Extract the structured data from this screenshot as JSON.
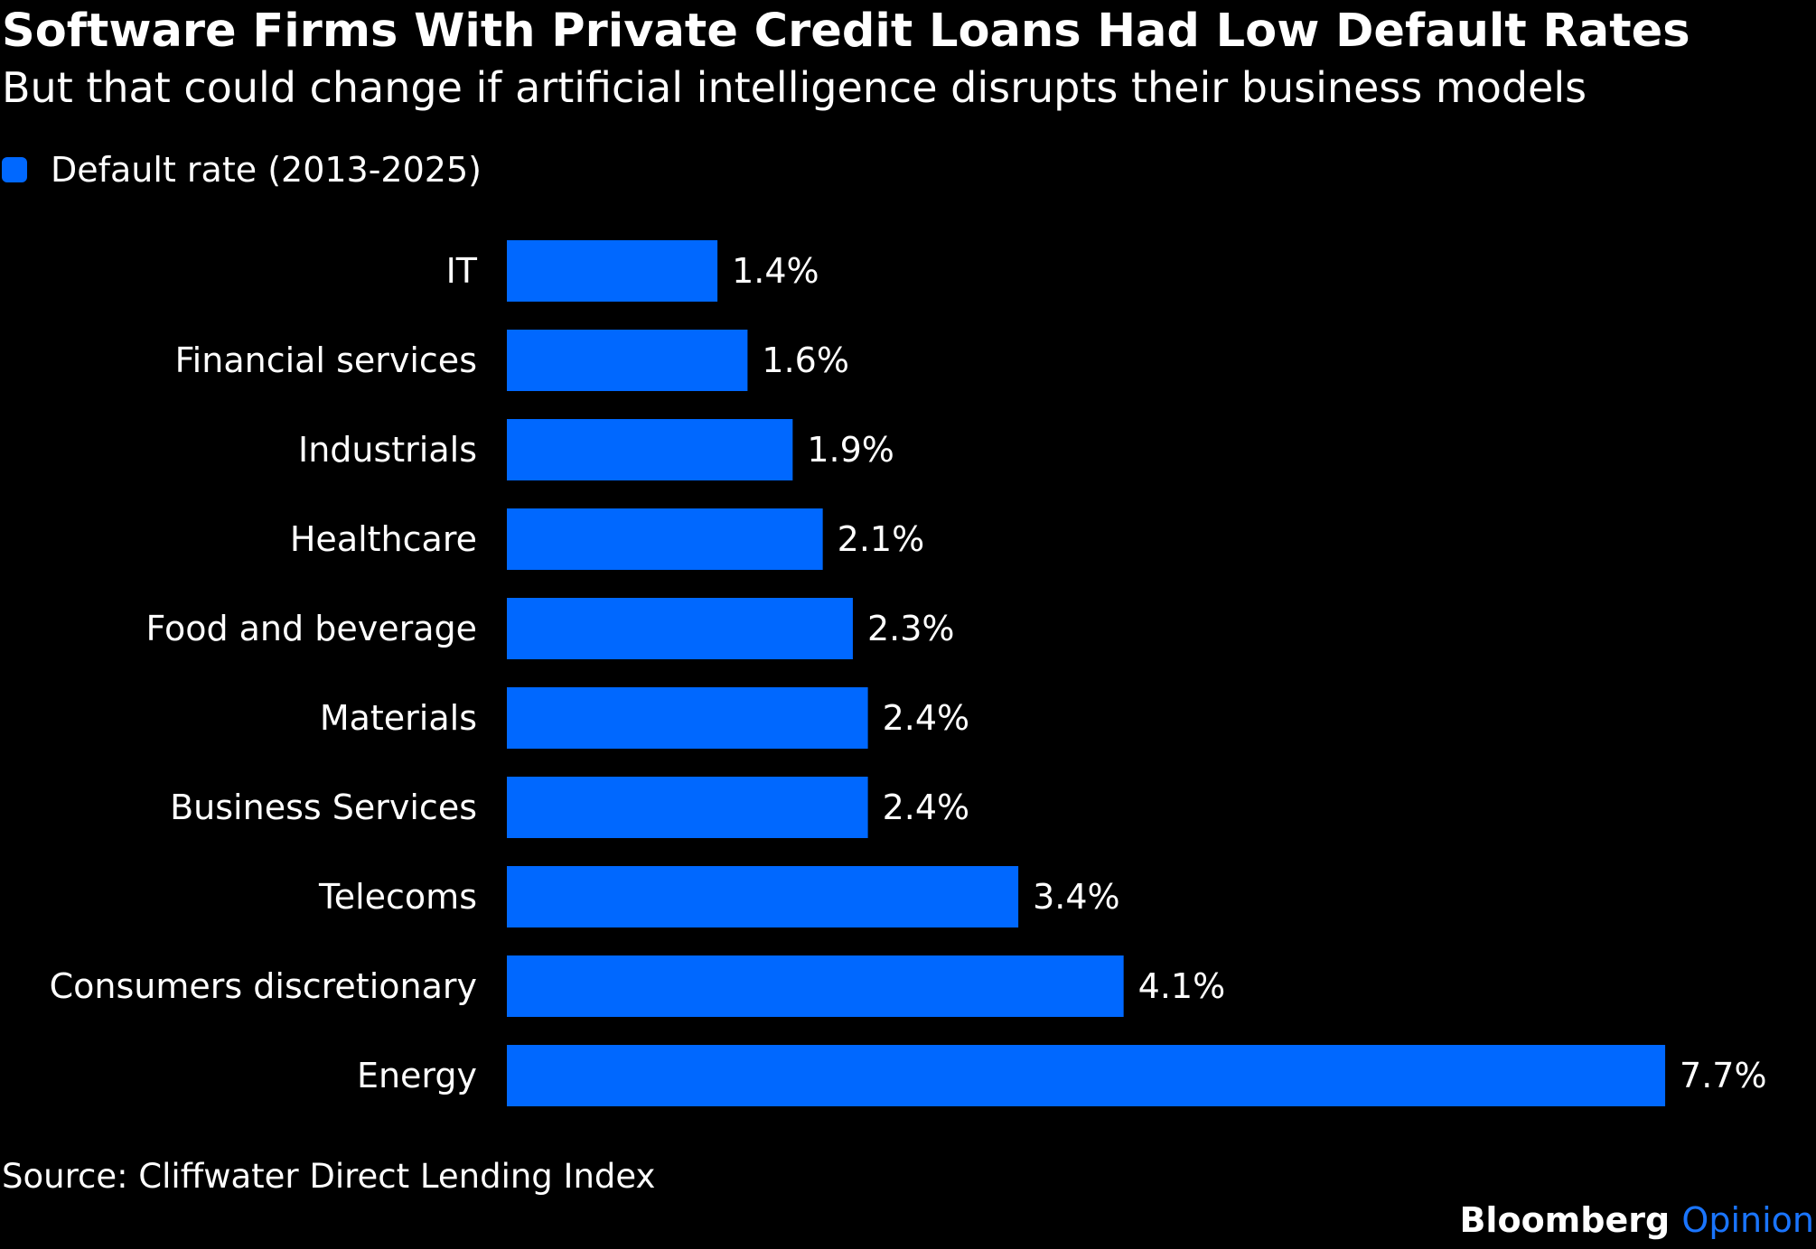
{
  "header": {
    "title": "Software Firms With Private Credit Loans Had Low Default Rates",
    "subtitle": "But that could change if artificial intelligence disrupts their business models"
  },
  "legend": {
    "label": "Default rate (2013-2025)"
  },
  "colors": {
    "background": "#000000",
    "bar": "#0068ff",
    "text": "#ffffff",
    "brand_accent": "#1a75ff"
  },
  "chart_data": {
    "type": "bar",
    "orientation": "horizontal",
    "categories": [
      "IT",
      "Financial services",
      "Industrials",
      "Healthcare",
      "Food and beverage",
      "Materials",
      "Business Services",
      "Telecoms",
      "Consumers discretionary",
      "Energy"
    ],
    "series": [
      {
        "name": "Default rate (2013-2025)",
        "values": [
          1.4,
          1.6,
          1.9,
          2.1,
          2.3,
          2.4,
          2.4,
          3.4,
          4.1,
          7.7
        ]
      }
    ],
    "value_labels": [
      "1.4%",
      "1.6%",
      "1.9%",
      "2.1%",
      "2.3%",
      "2.4%",
      "2.4%",
      "3.4%",
      "4.1%",
      "7.7%"
    ],
    "xlim": [
      0,
      7.7
    ],
    "grid": false,
    "legend_position": "top-left"
  },
  "footer": {
    "source": "Source: Cliffwater Direct Lending Index",
    "brand_primary": "Bloomberg",
    "brand_secondary": "Opinion"
  }
}
